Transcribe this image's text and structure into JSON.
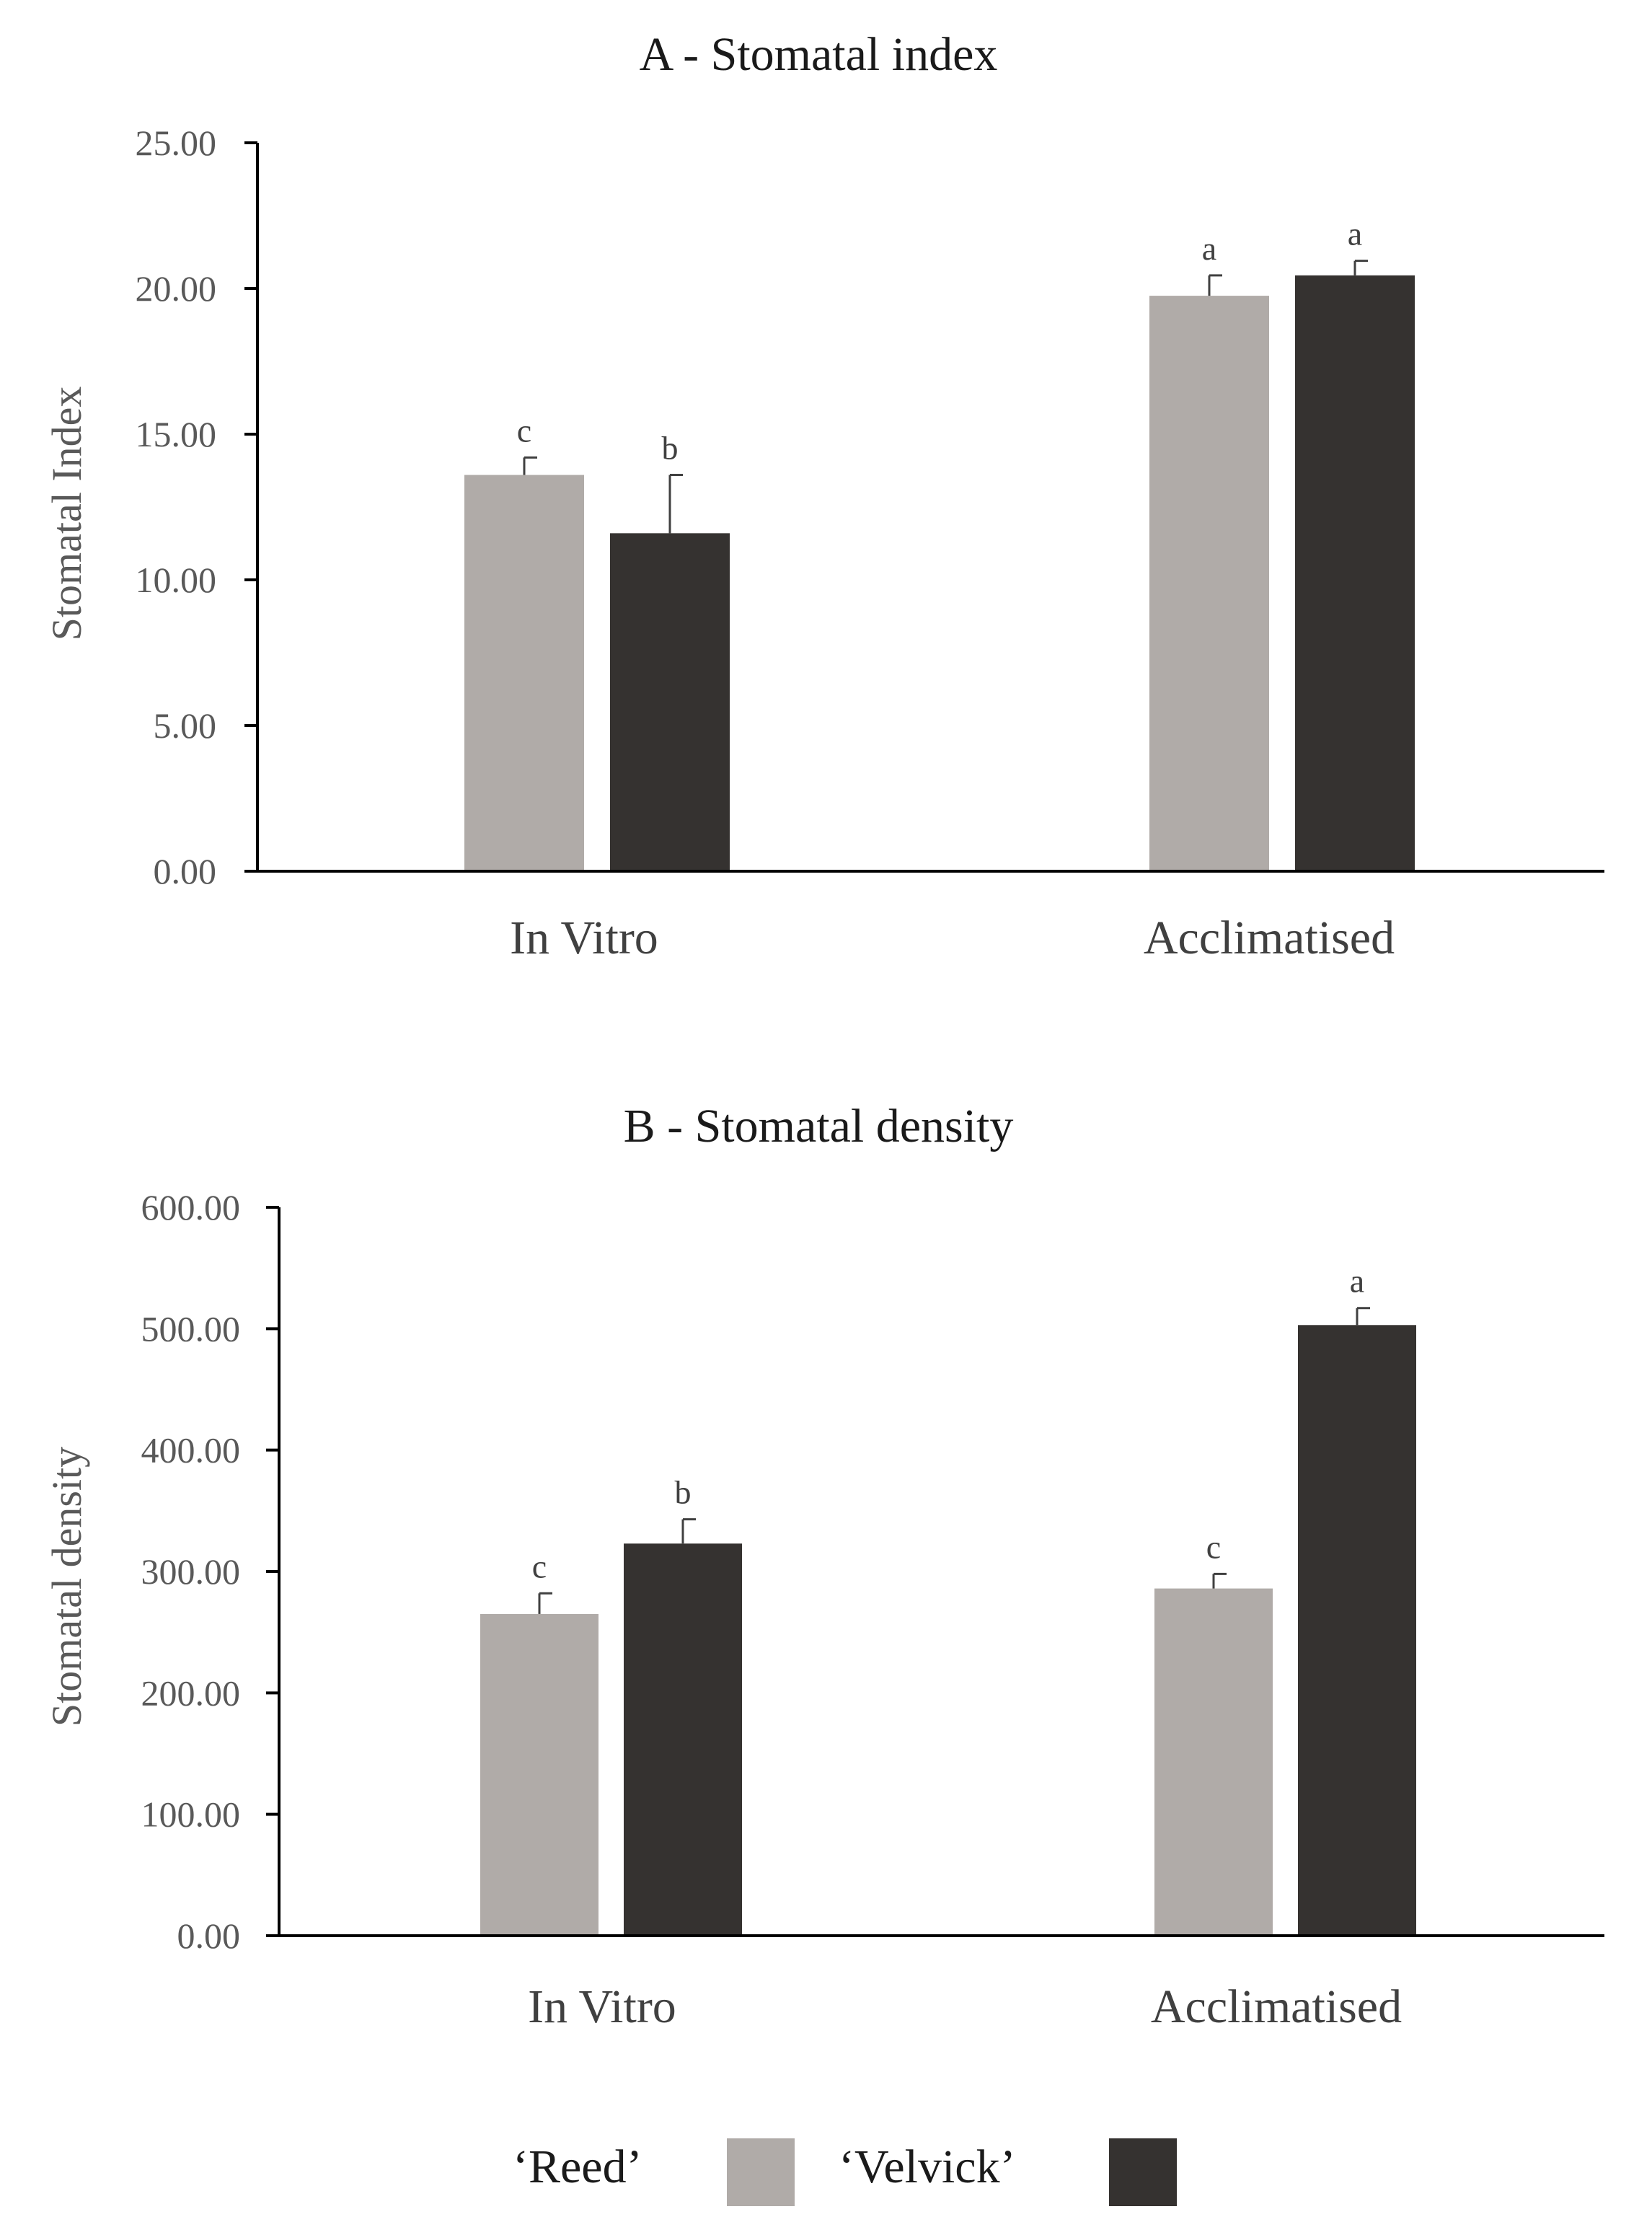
{
  "chart_data": [
    {
      "type": "bar",
      "title": "A - Stomatal index",
      "xlabel": "",
      "ylabel": "Stomatal Index",
      "ylim": [
        0,
        25
      ],
      "yticks": [
        "0.00",
        "5.00",
        "10.00",
        "15.00",
        "20.00",
        "25.00"
      ],
      "grid": false,
      "categories": [
        "In Vitro",
        "Acclimatised"
      ],
      "series": [
        {
          "name": "‘Reed’",
          "color": "#b0aba8",
          "values": [
            13.6,
            19.75
          ],
          "errors": [
            0.6,
            0.7
          ],
          "letters": [
            "c",
            "a"
          ]
        },
        {
          "name": "‘Velvick’",
          "color": "#353230",
          "values": [
            11.6,
            20.45
          ],
          "errors": [
            2.0,
            0.5
          ],
          "letters": [
            "b",
            "a"
          ]
        }
      ]
    },
    {
      "type": "bar",
      "title": "B - Stomatal density",
      "xlabel": "",
      "ylabel": "Stomatal density",
      "ylim": [
        0,
        600
      ],
      "yticks": [
        "0.00",
        "100.00",
        "200.00",
        "300.00",
        "400.00",
        "500.00",
        "600.00"
      ],
      "grid": false,
      "categories": [
        "In Vitro",
        "Acclimatised"
      ],
      "series": [
        {
          "name": "‘Reed’",
          "color": "#b0aba8",
          "values": [
            265,
            286
          ],
          "errors": [
            17,
            12
          ],
          "letters": [
            "c",
            "c"
          ]
        },
        {
          "name": "‘Velvick’",
          "color": "#353230",
          "values": [
            323,
            503
          ],
          "errors": [
            20,
            14
          ],
          "letters": [
            "b",
            "a"
          ]
        }
      ]
    }
  ],
  "legend": {
    "position": "bottom",
    "items": [
      {
        "label": "‘Reed’",
        "color": "#b0aba8"
      },
      {
        "label": "‘Velvick’",
        "color": "#353230"
      }
    ]
  }
}
